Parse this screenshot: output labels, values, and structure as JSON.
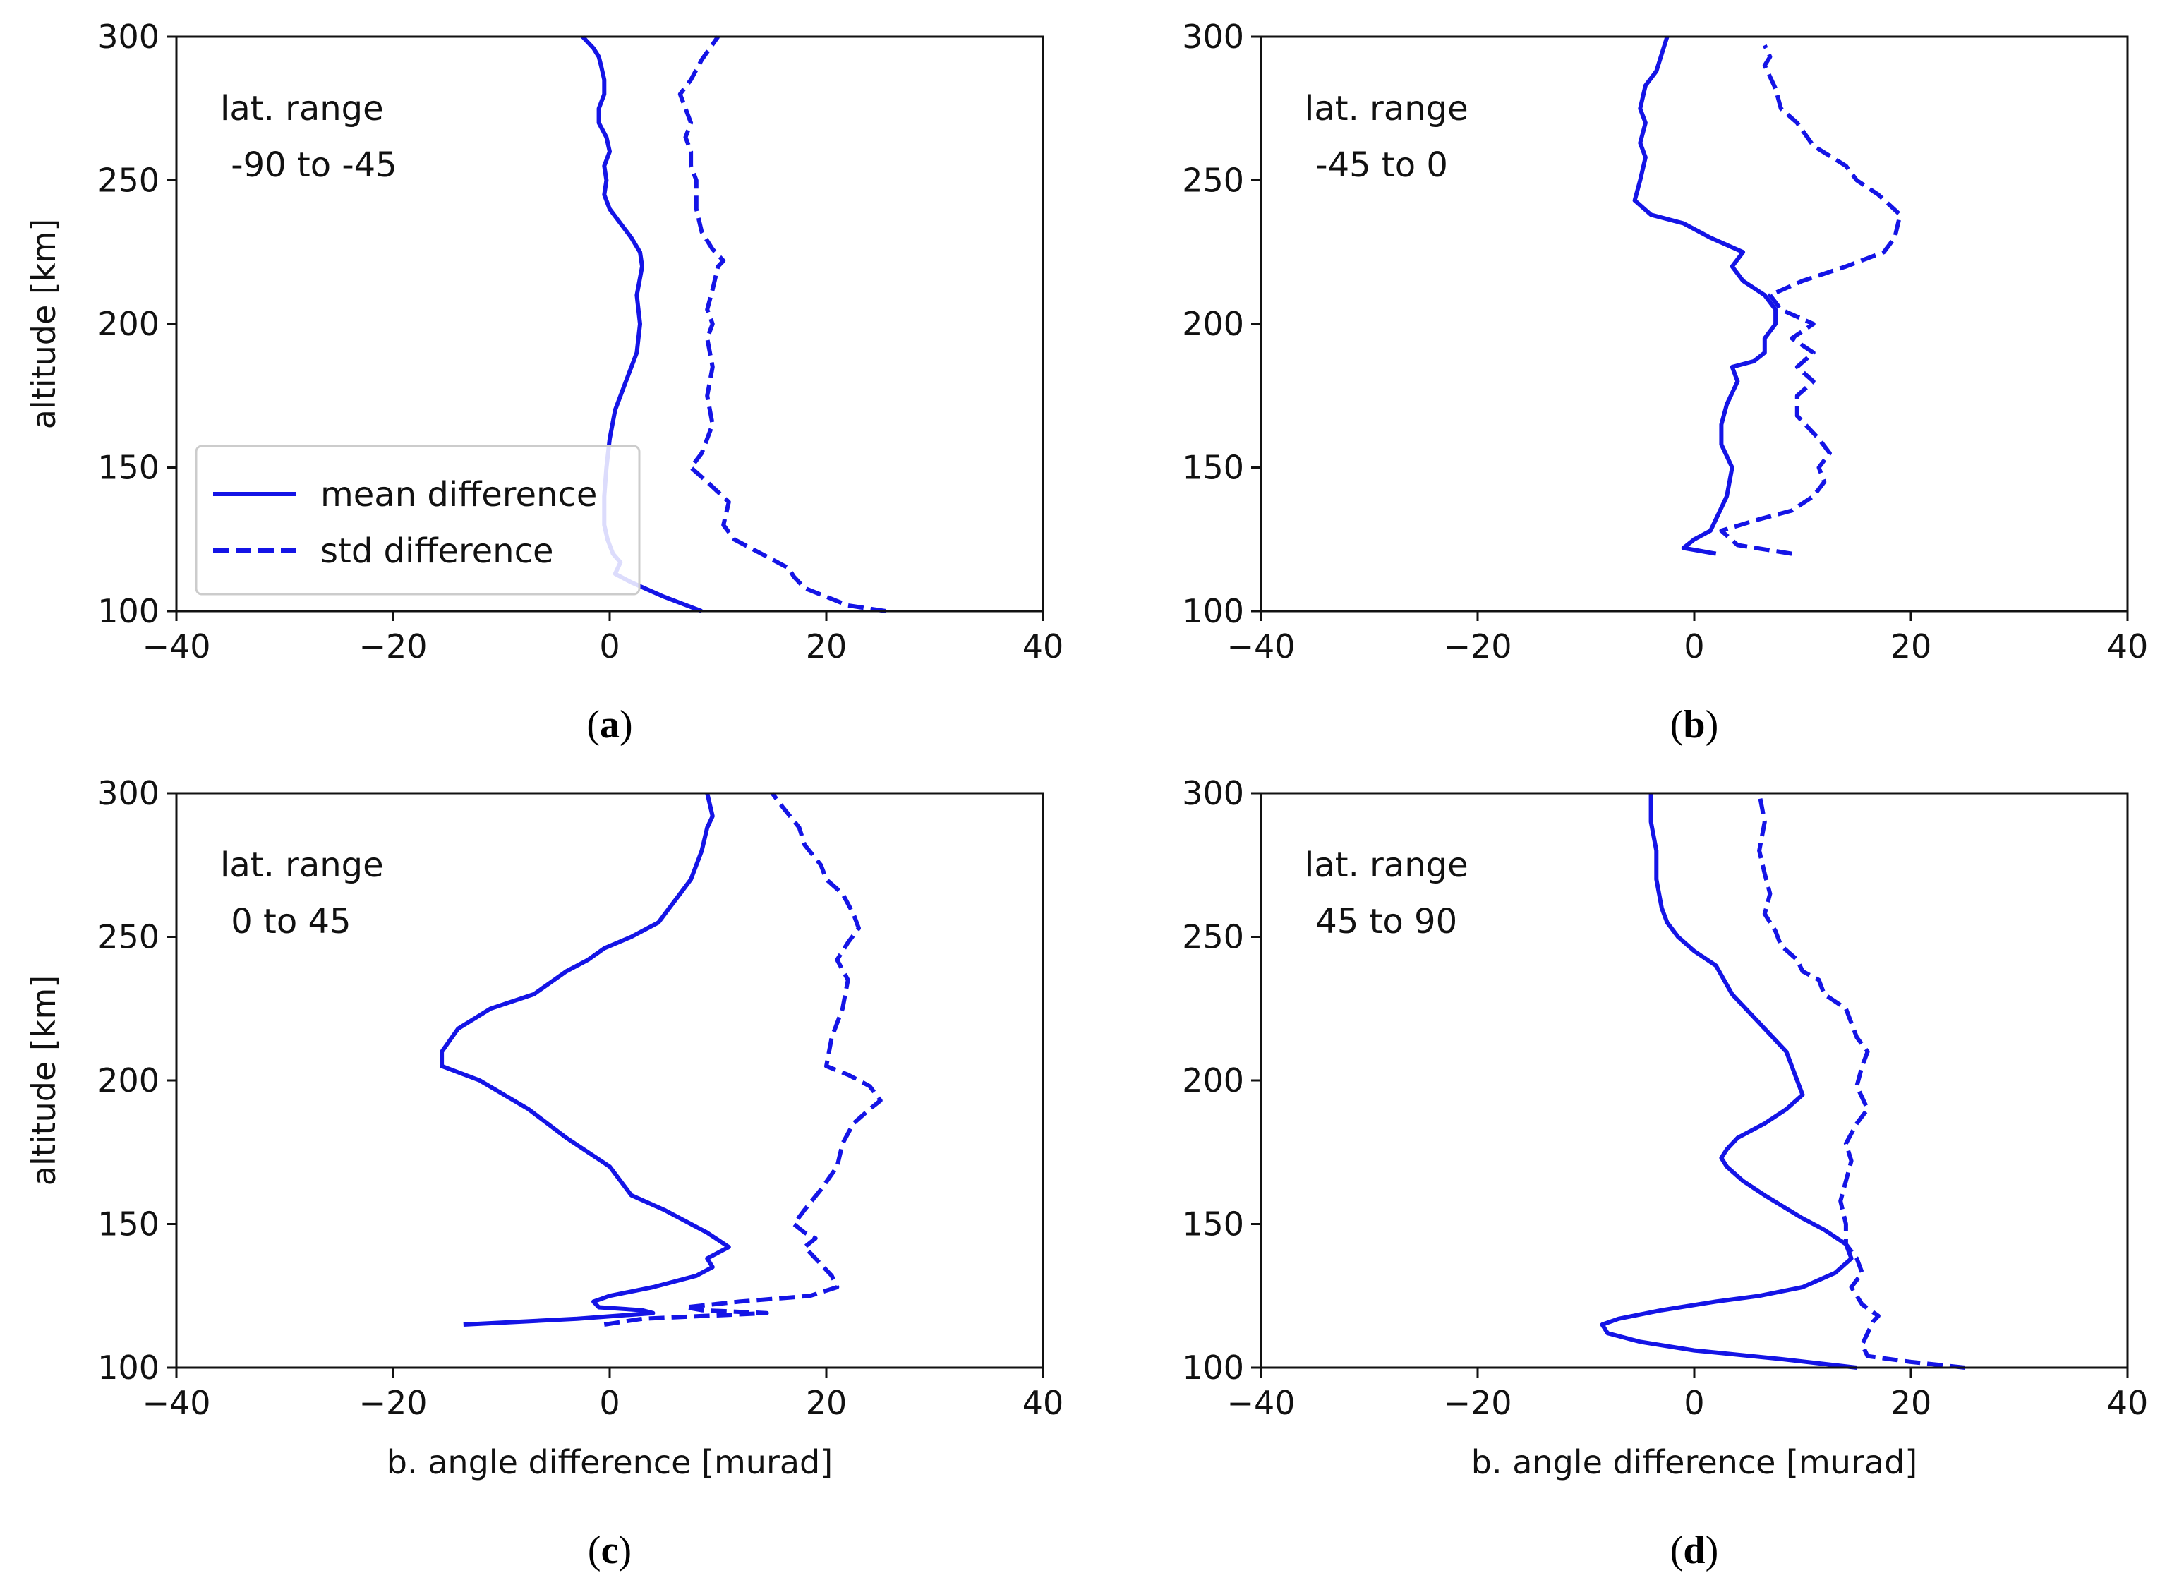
{
  "colors": {
    "line": "#1414e6",
    "axis": "#111111",
    "background": "#ffffff"
  },
  "chart_data": [
    {
      "id": "a",
      "type": "line",
      "caption_letter": "a",
      "annotation": [
        "lat. range",
        " -90 to -45"
      ],
      "xlabel": "",
      "ylabel": "altitude [km]",
      "xlim": [
        -40,
        40
      ],
      "ylim": [
        100,
        300
      ],
      "xticks": [
        -40,
        -20,
        0,
        20,
        40
      ],
      "yticks": [
        100,
        150,
        200,
        250,
        300
      ],
      "legend": {
        "placement": "lower-left",
        "entries": [
          {
            "label": "mean difference",
            "style": "solid"
          },
          {
            "label": "std difference",
            "style": "dashed"
          }
        ]
      },
      "series": [
        {
          "name": "mean difference",
          "style": "solid",
          "x": [
            8.5,
            5,
            2,
            0.5,
            1,
            0.3,
            -0.2,
            -0.5,
            -0.5,
            -0.3,
            0,
            0.5,
            1.5,
            2.5,
            2.8,
            2.5,
            3,
            2.8,
            2,
            1,
            0,
            -0.5,
            -0.3,
            -0.5,
            0,
            -0.3,
            -1,
            -1,
            -0.5,
            -0.5,
            -0.8,
            -1,
            -1.5,
            -2.5
          ],
          "y": [
            100,
            105,
            110,
            113,
            117,
            120,
            125,
            130,
            140,
            150,
            160,
            170,
            180,
            190,
            200,
            210,
            220,
            225,
            230,
            235,
            240,
            245,
            250,
            255,
            260,
            265,
            270,
            275,
            280,
            285,
            290,
            293,
            296,
            300
          ]
        },
        {
          "name": "std difference",
          "style": "dashed",
          "x": [
            25.5,
            22,
            20,
            18,
            17,
            16.5,
            14,
            11.5,
            10.5,
            11,
            9,
            7.5,
            8.5,
            9.5,
            9,
            9.5,
            9,
            9.5,
            9,
            9.5,
            10,
            10.5,
            9.5,
            8.5,
            8,
            8,
            7.5,
            7.5,
            7,
            7.5,
            7,
            6.5,
            7.5,
            8.5,
            10
          ],
          "y": [
            100,
            102,
            105,
            108,
            112,
            115,
            120,
            125,
            130,
            138,
            145,
            150,
            155,
            165,
            175,
            185,
            195,
            200,
            205,
            212,
            220,
            222,
            226,
            232,
            240,
            250,
            255,
            260,
            265,
            270,
            275,
            280,
            285,
            292,
            300
          ]
        }
      ]
    },
    {
      "id": "b",
      "type": "line",
      "caption_letter": "b",
      "annotation": [
        "lat. range",
        " -45 to 0"
      ],
      "xlabel": "",
      "ylabel": "",
      "xlim": [
        -40,
        40
      ],
      "ylim": [
        100,
        300
      ],
      "xticks": [
        -40,
        -20,
        0,
        20,
        40
      ],
      "yticks": [
        100,
        150,
        200,
        250,
        300
      ],
      "series": [
        {
          "name": "mean difference",
          "style": "solid",
          "x": [
            2,
            -1,
            0,
            1.5,
            2,
            3,
            3.5,
            2.5,
            2.5,
            3,
            4,
            3.5,
            5.5,
            6.5,
            6.5,
            7.5,
            7.5,
            6.5,
            4.5,
            3.5,
            4.5,
            1.5,
            -1,
            -4,
            -5.5,
            -5,
            -4.5,
            -5,
            -4.5,
            -5,
            -4.5,
            -3.5,
            -3,
            -2.5
          ],
          "y": [
            120,
            122,
            125,
            128,
            132,
            140,
            150,
            158,
            165,
            172,
            180,
            185,
            187,
            190,
            195,
            200,
            205,
            210,
            215,
            220,
            225,
            230,
            235,
            238,
            243,
            250,
            258,
            263,
            270,
            275,
            283,
            288,
            294,
            300
          ]
        },
        {
          "name": "std difference",
          "style": "dashed",
          "x": [
            9,
            4,
            2.5,
            6,
            9,
            11,
            12,
            11.5,
            12.5,
            11.5,
            9.5,
            9.5,
            11,
            9.5,
            11,
            9,
            11,
            8,
            7,
            10,
            14,
            17.5,
            18.5,
            19,
            17,
            15,
            14,
            11,
            9.5,
            8,
            7.5,
            6.5,
            7,
            6.5
          ],
          "y": [
            120,
            123,
            128,
            132,
            135,
            140,
            145,
            150,
            155,
            160,
            168,
            175,
            180,
            185,
            190,
            195,
            200,
            205,
            210,
            215,
            220,
            225,
            230,
            238,
            245,
            250,
            255,
            262,
            270,
            275,
            282,
            290,
            293,
            297
          ]
        }
      ]
    },
    {
      "id": "c",
      "type": "line",
      "caption_letter": "c",
      "annotation": [
        "lat. range",
        " 0 to 45"
      ],
      "xlabel": "b. angle difference  [murad]",
      "ylabel": "altitude [km]",
      "xlim": [
        -40,
        40
      ],
      "ylim": [
        100,
        300
      ],
      "xticks": [
        -40,
        -20,
        0,
        20,
        40
      ],
      "yticks": [
        100,
        150,
        200,
        250,
        300
      ],
      "series": [
        {
          "name": "mean difference",
          "style": "solid",
          "x": [
            -13.5,
            -3,
            4,
            3,
            -1,
            -1.5,
            0,
            4,
            8,
            9.5,
            9,
            10,
            11,
            9,
            5,
            2,
            0,
            -4,
            -7.5,
            -12,
            -15.5,
            -15.5,
            -14,
            -11,
            -7,
            -4,
            -2,
            -0.5,
            2,
            4.5,
            5.5,
            6.5,
            7.5,
            8,
            8.5,
            9,
            9.5,
            9
          ],
          "y": [
            115,
            117,
            119,
            120,
            121,
            123,
            125,
            128,
            132,
            135,
            138,
            140,
            142,
            147,
            155,
            160,
            170,
            180,
            190,
            200,
            205,
            210,
            218,
            225,
            230,
            238,
            242,
            246,
            250,
            255,
            260,
            265,
            270,
            275,
            280,
            288,
            292,
            300
          ]
        },
        {
          "name": "std difference",
          "style": "dashed",
          "x": [
            -0.5,
            3,
            14.5,
            8.5,
            7,
            12,
            18.5,
            21,
            20.5,
            19,
            18,
            19,
            18,
            17,
            18,
            19.5,
            21,
            21.5,
            22.5,
            24,
            25,
            24,
            22,
            20,
            20.5,
            21.5,
            22,
            21,
            22,
            23,
            22.5,
            21.5,
            20,
            19.5,
            18,
            17.5,
            16,
            15
          ],
          "y": [
            115,
            117,
            119,
            120,
            121,
            123,
            125,
            128,
            132,
            138,
            142,
            145,
            147,
            150,
            155,
            162,
            170,
            178,
            185,
            190,
            193,
            198,
            202,
            205,
            215,
            225,
            235,
            242,
            248,
            253,
            258,
            265,
            270,
            275,
            282,
            288,
            295,
            300
          ]
        }
      ]
    },
    {
      "id": "d",
      "type": "line",
      "caption_letter": "d",
      "annotation": [
        "lat. range",
        " 45 to 90"
      ],
      "xlabel": "b. angle difference  [murad]",
      "ylabel": "",
      "xlim": [
        -40,
        40
      ],
      "ylim": [
        100,
        300
      ],
      "xticks": [
        -40,
        -20,
        0,
        20,
        40
      ],
      "yticks": [
        100,
        150,
        200,
        250,
        300
      ],
      "series": [
        {
          "name": "mean difference",
          "style": "solid",
          "x": [
            15,
            8,
            0,
            -5,
            -8,
            -8.5,
            -7,
            -3,
            2,
            6,
            10,
            13,
            14.5,
            14,
            12,
            10,
            6.5,
            4.5,
            3,
            2.5,
            3,
            4,
            6.5,
            8.5,
            10,
            9.5,
            8.5,
            6,
            3.5,
            2,
            0,
            -1.5,
            -2.5,
            -3,
            -3.5,
            -3.5,
            -4,
            -4
          ],
          "y": [
            100,
            103,
            106,
            109,
            112,
            115,
            117,
            120,
            123,
            125,
            128,
            133,
            138,
            143,
            148,
            152,
            160,
            165,
            170,
            173,
            176,
            180,
            185,
            190,
            195,
            200,
            210,
            220,
            230,
            240,
            245,
            250,
            255,
            260,
            270,
            280,
            290,
            300
          ]
        },
        {
          "name": "std difference",
          "style": "dashed",
          "x": [
            25,
            20,
            16,
            15.5,
            16,
            16.5,
            17,
            15.5,
            14.5,
            15.5,
            15,
            14,
            14,
            13.5,
            14,
            14.5,
            14,
            15,
            16,
            15,
            15.5,
            16,
            15,
            14.5,
            14,
            12,
            11.5,
            10,
            9.5,
            8,
            7.5,
            6.5,
            7,
            6.5,
            6,
            6.5,
            6
          ],
          "y": [
            100,
            102,
            104,
            108,
            112,
            116,
            118,
            122,
            128,
            133,
            138,
            143,
            150,
            158,
            165,
            172,
            178,
            185,
            190,
            198,
            205,
            210,
            215,
            220,
            225,
            230,
            235,
            238,
            242,
            247,
            252,
            258,
            265,
            272,
            280,
            290,
            300
          ]
        }
      ]
    }
  ]
}
